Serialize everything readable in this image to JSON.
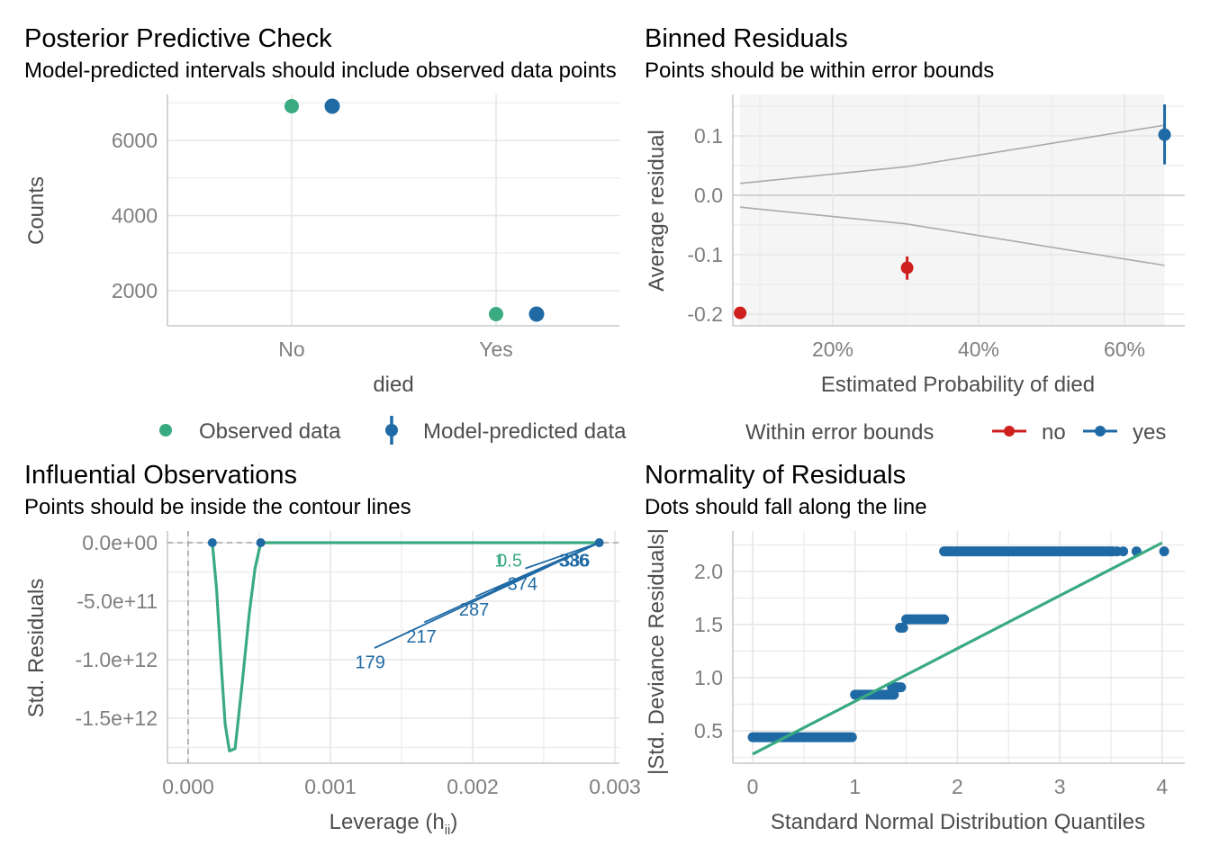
{
  "colors": {
    "observed": "#3aaa81",
    "predicted": "#1f6aa5",
    "no": "#cd201f",
    "yes": "#1f6aa5",
    "bounds": "#aaaaaa",
    "band": "#f5f5f5",
    "contour": "#3aaa81",
    "qq_line": "#3aaa81"
  },
  "chart_data": [
    {
      "type": "scatter",
      "title": "Posterior Predictive Check",
      "subtitle": "Model-predicted intervals should include observed data points",
      "xlabel": "died",
      "ylabel": "Counts",
      "categories": [
        "No",
        "Yes"
      ],
      "yticks": [
        2000,
        4000,
        6000
      ],
      "ytick_labels": [
        "2000",
        "4000",
        "6000"
      ],
      "ylim": [
        1100,
        7200
      ],
      "grid": true,
      "series": [
        {
          "name": "Observed data",
          "values": [
            6910,
            1377
          ]
        },
        {
          "name": "Model-predicted data",
          "values": [
            6910,
            1377
          ]
        }
      ],
      "legend": {
        "position": "bottom",
        "items": [
          "Observed data",
          "Model-predicted data"
        ]
      }
    },
    {
      "type": "scatter",
      "title": "Binned Residuals",
      "subtitle": "Points should be within error bounds",
      "xlabel": "Estimated Probability of died",
      "ylabel": "Average residual",
      "xticks": [
        0.2,
        0.4,
        0.6
      ],
      "xtick_labels": [
        "20%",
        "40%",
        "60%"
      ],
      "yticks": [
        -0.2,
        -0.1,
        0.0,
        0.1
      ],
      "ytick_labels": [
        "-0.2",
        "-0.1",
        "0.0",
        "0.1"
      ],
      "xlim": [
        0.07,
        0.67
      ],
      "ylim": [
        -0.21,
        0.17
      ],
      "grid": true,
      "bounds": {
        "x": [
          0.073,
          0.3,
          0.655
        ],
        "upper": [
          0.02,
          0.048,
          0.118
        ],
        "lower": [
          -0.02,
          -0.048,
          -0.118
        ]
      },
      "points": [
        {
          "x": 0.073,
          "y": -0.198,
          "lo": -0.198,
          "hi": -0.198,
          "group": "no"
        },
        {
          "x": 0.302,
          "y": -0.122,
          "lo": -0.142,
          "hi": -0.103,
          "group": "no"
        },
        {
          "x": 0.655,
          "y": 0.102,
          "lo": 0.052,
          "hi": 0.153,
          "group": "yes"
        }
      ],
      "legend": {
        "position": "bottom",
        "title": "Within error bounds",
        "items": [
          "no",
          "yes"
        ]
      }
    },
    {
      "type": "scatter",
      "title": "Influential Observations",
      "subtitle": "Points should be inside the contour lines",
      "xlabel": "Leverage (h",
      "xlabel_sub": "ii",
      "xlabel_close": ")",
      "ylabel": "Std. Residuals",
      "xticks": [
        0.0,
        0.001,
        0.002,
        0.003
      ],
      "xtick_labels": [
        "0.000",
        "0.001",
        "0.002",
        "0.003"
      ],
      "yticks": [
        -1500000000000.0,
        -1000000000000.0,
        -500000000000.0,
        0.0
      ],
      "ytick_labels": [
        "-1.5e+12",
        "-1.0e+12",
        "-5.0e+11",
        "0.0e+00"
      ],
      "xlim": [
        -0.00015,
        0.00305
      ],
      "ylim": [
        -1870000000000.0,
        70000000000.0
      ],
      "grid": true,
      "points": [
        {
          "x": 0.00017,
          "y": 0
        },
        {
          "x": 0.00051,
          "y": 0
        },
        {
          "x": 0.00289,
          "y": 0
        }
      ],
      "contour": {
        "x": [
          0.00017,
          0.0002,
          0.00023,
          0.00026,
          0.00029,
          0.00033,
          0.00038,
          0.00043,
          0.00047,
          0.00051,
          0.001,
          0.002,
          0.00289
        ],
        "y": [
          0,
          -400000000000.0,
          -1000000000000.0,
          -1550000000000.0,
          -1780000000000.0,
          -1760000000000.0,
          -1200000000000.0,
          -600000000000.0,
          -220000000000.0,
          0,
          0,
          0,
          0
        ]
      },
      "label_lines": [
        {
          "x0": 0.00131,
          "y0": -900000000000.0,
          "x1": 0.00289,
          "y1": 0
        },
        {
          "x0": 0.00166,
          "y0": -680000000000.0,
          "x1": 0.00289,
          "y1": 0
        },
        {
          "x0": 0.00202,
          "y0": -460000000000.0,
          "x1": 0.00289,
          "y1": 0
        },
        {
          "x0": 0.00215,
          "y0": -400000000000.0,
          "x1": 0.00289,
          "y1": 0
        },
        {
          "x0": 0.00237,
          "y0": -220000000000.0,
          "x1": 0.00289,
          "y1": 0
        }
      ],
      "labels": [
        {
          "text": "179",
          "x": 0.00128,
          "y": -1020000000000.0,
          "kind": "obs"
        },
        {
          "text": "217",
          "x": 0.00164,
          "y": -800000000000.0,
          "kind": "obs"
        },
        {
          "text": "287",
          "x": 0.00201,
          "y": -570000000000.0,
          "kind": "obs"
        },
        {
          "text": "374",
          "x": 0.00235,
          "y": -350000000000.0,
          "kind": "obs"
        },
        {
          "text": "386",
          "x": 0.00272,
          "y": -150000000000.0,
          "kind": "obs"
        },
        {
          "text": "336",
          "x": 0.00271,
          "y": -150000000000.0,
          "kind": "obs"
        },
        {
          "text": "0.5",
          "x": 0.00226,
          "y": -150000000000.0,
          "kind": "contour"
        },
        {
          "text": "1",
          "x": 0.00219,
          "y": -150000000000.0,
          "kind": "contour"
        }
      ]
    },
    {
      "type": "scatter",
      "title": "Normality of Residuals",
      "subtitle": "Dots should fall along the line",
      "xlabel": "Standard Normal Distribution Quantiles",
      "ylabel": "|Std. Deviance Residuals|",
      "xticks": [
        0,
        1,
        2,
        3,
        4
      ],
      "xtick_labels": [
        "0",
        "1",
        "2",
        "3",
        "4"
      ],
      "yticks": [
        0.5,
        1.0,
        1.5,
        2.0
      ],
      "ytick_labels": [
        "0.5",
        "1.0",
        "1.5",
        "2.0"
      ],
      "xlim": [
        -0.2,
        4.2
      ],
      "ylim": [
        0.2,
        2.33
      ],
      "grid": true,
      "point_runs": [
        {
          "y": 0.44,
          "x_from": 0.0,
          "x_to": 0.97
        },
        {
          "y": 0.84,
          "x_from": 1.0,
          "x_to": 1.38
        },
        {
          "y": 0.91,
          "x_from": 1.36,
          "x_to": 1.45
        },
        {
          "y": 1.47,
          "x_from": 1.44,
          "x_to": 1.47
        },
        {
          "y": 1.55,
          "x_from": 1.5,
          "x_to": 1.87
        },
        {
          "y": 2.19,
          "x_from": 1.87,
          "x_to": 3.52
        }
      ],
      "points": [
        {
          "x": 3.56,
          "y": 2.19
        },
        {
          "x": 3.62,
          "y": 2.19
        },
        {
          "x": 3.75,
          "y": 2.19
        },
        {
          "x": 4.02,
          "y": 2.19
        }
      ],
      "reference_line": {
        "x": [
          0,
          4
        ],
        "y": [
          0.28,
          2.27
        ]
      }
    }
  ]
}
